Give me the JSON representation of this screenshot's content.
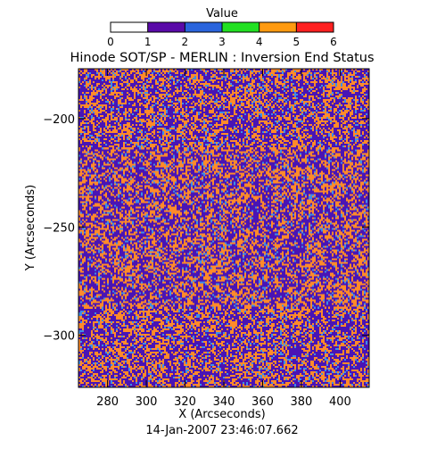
{
  "chart_data": {
    "type": "heatmap",
    "title": "Hinode SOT/SP - MERLIN : Inversion End Status",
    "xlabel": "X (Arcseconds)",
    "ylabel": "Y (Arcseconds)",
    "xlim": [
      265,
      415
    ],
    "ylim": [
      -324,
      -177
    ],
    "x_ticks": [
      280,
      300,
      320,
      340,
      360,
      380,
      400
    ],
    "y_ticks": [
      -200,
      -250,
      -300
    ],
    "timestamp": "14-Jan-2007 23:46:07.662",
    "colorbar": {
      "title": "Value",
      "ticks": [
        0,
        1,
        2,
        3,
        4,
        5,
        6
      ],
      "bins": [
        {
          "from": 0,
          "to": 1,
          "color": "#ffffff"
        },
        {
          "from": 1,
          "to": 2,
          "color": "#5a0aa8"
        },
        {
          "from": 2,
          "to": 3,
          "color": "#2a64dc"
        },
        {
          "from": 3,
          "to": 4,
          "color": "#22e022"
        },
        {
          "from": 4,
          "to": 5,
          "color": "#ff9a10"
        },
        {
          "from": 5,
          "to": 6,
          "color": "#ff2020"
        }
      ]
    },
    "map": {
      "appearance": "fine-grained speckle, dominated by value 1 (purple) and value 4 (orange) with scattered value 2 (blue) pixels",
      "value_mix": [
        {
          "value": 1,
          "share": 0.52,
          "color": "#4a14b4"
        },
        {
          "value": 4,
          "share": 0.4,
          "color": "#ff8a2a"
        },
        {
          "value": 2,
          "share": 0.08,
          "color": "#3d8ee8"
        }
      ]
    }
  }
}
